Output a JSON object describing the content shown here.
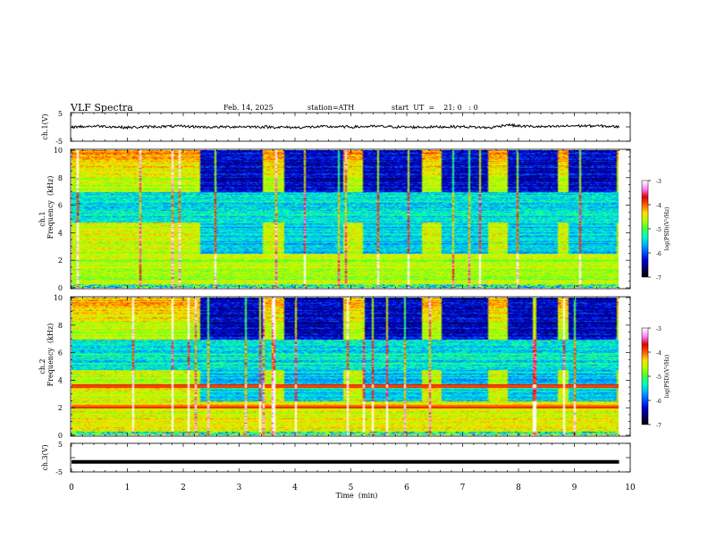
{
  "header": {
    "title": "VLF  Spectra",
    "date": "Feb. 14, 2025",
    "station": "station=ATH",
    "start_ut": "start  UT  =    21: 0   : 0"
  },
  "colors": {
    "trace": "#000000",
    "colormap": [
      "#000000",
      "#000060",
      "#0000d0",
      "#0050ff",
      "#00b0ff",
      "#00ffc0",
      "#40ff40",
      "#b0ff00",
      "#ffe000",
      "#ff6000",
      "#e00000",
      "#ff80ff",
      "#ffffff"
    ]
  },
  "chart_data": [
    {
      "type": "line",
      "panel": "ch1_waveform",
      "ylabel": "ch.1(V)",
      "ylim": [
        -5,
        5
      ],
      "y_ticks": [
        "5",
        "-5"
      ],
      "x": [
        0,
        0.5,
        1,
        1.5,
        2,
        2.5,
        3,
        3.5,
        4,
        4.5,
        5,
        5.5,
        6,
        6.5,
        7,
        7.5,
        7.8,
        8,
        8.5,
        9,
        9.5,
        9.8
      ],
      "y": [
        0,
        0.3,
        -0.2,
        0.1,
        0.2,
        -0.1,
        0.1,
        0,
        -0.2,
        0.1,
        0,
        0.2,
        -0.1,
        0,
        0.1,
        -0.3,
        0.8,
        0.3,
        0,
        0.4,
        0.3,
        0
      ]
    },
    {
      "type": "heatmap",
      "panel": "ch1_spectrogram",
      "ylabel_top": "ch.1",
      "ylabel": "Frequency  (kHz)",
      "ylim": [
        0,
        10
      ],
      "y_ticks": [
        "0",
        "2",
        "4",
        "6",
        "8",
        "10"
      ],
      "quiet_intervals_min": [
        [
          2.3,
          3.4
        ],
        [
          3.8,
          4.85
        ],
        [
          5.2,
          6.25
        ],
        [
          6.6,
          7.45
        ],
        [
          7.8,
          8.7
        ],
        [
          8.9,
          9.75
        ]
      ],
      "colorbar": {
        "label": "log(PSD)(V²/Hz)",
        "ticks": [
          "-3",
          "-4",
          "-5",
          "-6",
          "-7"
        ],
        "range": [
          -7,
          -3
        ]
      }
    },
    {
      "type": "heatmap",
      "panel": "ch2_spectrogram",
      "ylabel_top": "ch.2",
      "ylabel": "Frequency  (kHz)",
      "ylim": [
        0,
        10
      ],
      "y_ticks": [
        "0",
        "2",
        "4",
        "6",
        "8",
        "10"
      ],
      "quiet_intervals_min": [
        [
          2.3,
          3.4
        ],
        [
          3.8,
          4.85
        ],
        [
          5.2,
          6.25
        ],
        [
          6.6,
          7.45
        ],
        [
          7.8,
          8.7
        ],
        [
          8.9,
          9.75
        ]
      ],
      "colorbar": {
        "label": "log(PSD)(V²/Hz)",
        "ticks": [
          "-3",
          "-4",
          "-5",
          "-6",
          "-7"
        ],
        "range": [
          -7,
          -3
        ]
      }
    },
    {
      "type": "line",
      "panel": "ch3_waveform",
      "ylabel": "ch.3(V)",
      "ylim": [
        -5,
        5
      ],
      "y_ticks": [
        "5",
        "-5"
      ],
      "x": [
        0,
        9.8
      ],
      "y": [
        -1.5,
        -1.5
      ]
    }
  ],
  "xaxis": {
    "label": "Time  (min)",
    "range": [
      0,
      10
    ],
    "ticks": [
      "0",
      "1",
      "2",
      "3",
      "4",
      "5",
      "6",
      "7",
      "8",
      "9",
      "10"
    ]
  }
}
